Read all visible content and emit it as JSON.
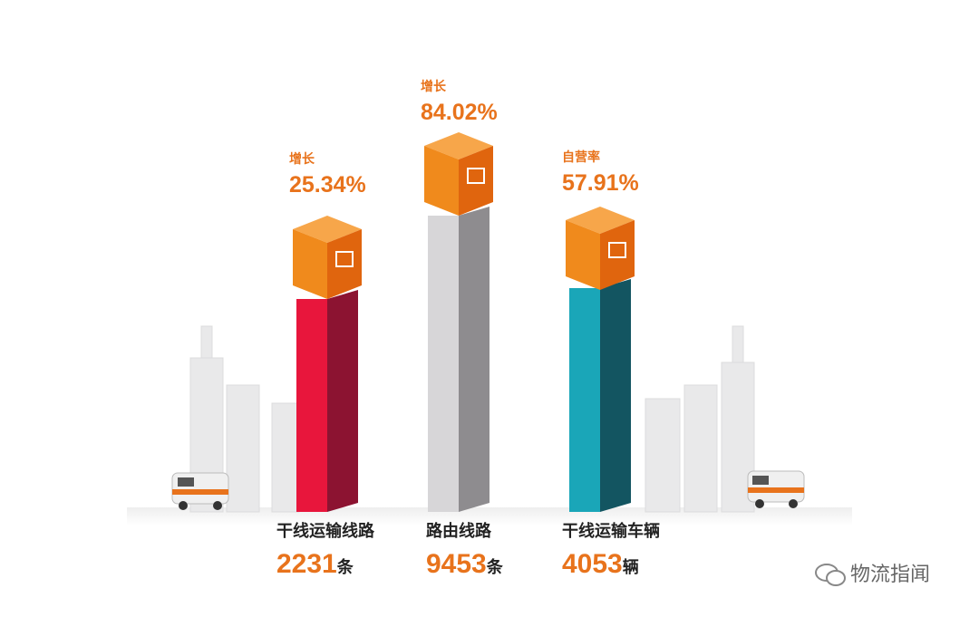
{
  "items": [
    {
      "growth_label": "增长",
      "growth": "25.34%",
      "name": "干线运输线路",
      "count": "2231",
      "unit": "条"
    },
    {
      "growth_label": "增长",
      "growth": "84.02%",
      "name": "路由线路",
      "count": "9453",
      "unit": "条"
    },
    {
      "growth_label": "自营率",
      "growth": "57.91%",
      "name": "干线运输车辆",
      "count": "4053",
      "unit": "辆"
    }
  ],
  "watermark": "物流指闻"
}
